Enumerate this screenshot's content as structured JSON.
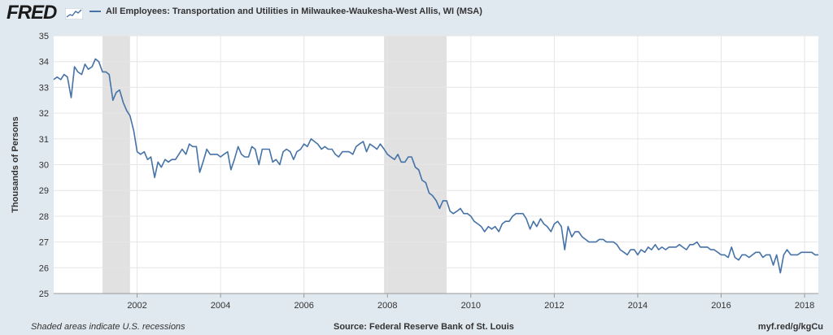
{
  "header": {
    "logo": "FRED",
    "legend": "All Employees: Transportation and Utilities in Milwaukee-Waukesha-West Allis, WI (MSA)"
  },
  "footer": {
    "left": "Shaded areas indicate U.S. recessions",
    "source": "Source: Federal Reserve Bank of St. Louis",
    "link": "myf.red/g/kgCu"
  },
  "colors": {
    "line": "#4572a7",
    "recession": "#e1e1e1",
    "frame": "#e1e9f0"
  },
  "chart_data": {
    "type": "line",
    "ylabel": "Thousands of Persons",
    "ylim": [
      25,
      35
    ],
    "xlim": [
      2000.0,
      2018.33
    ],
    "yticks": [
      "25",
      "26",
      "27",
      "28",
      "29",
      "30",
      "31",
      "32",
      "33",
      "34",
      "35"
    ],
    "xticks": [
      "2002",
      "2004",
      "2006",
      "2008",
      "2010",
      "2012",
      "2014",
      "2016",
      "2018"
    ],
    "recessions": [
      [
        2001.17,
        2001.83
      ],
      [
        2007.92,
        2009.42
      ]
    ],
    "series": [
      {
        "points": [
          [
            2000.0,
            33.3
          ],
          [
            2000.08,
            33.4
          ],
          [
            2000.17,
            33.3
          ],
          [
            2000.25,
            33.5
          ],
          [
            2000.33,
            33.4
          ],
          [
            2000.42,
            32.6
          ],
          [
            2000.5,
            33.8
          ],
          [
            2000.58,
            33.6
          ],
          [
            2000.67,
            33.5
          ],
          [
            2000.75,
            33.9
          ],
          [
            2000.83,
            33.7
          ],
          [
            2000.92,
            33.8
          ],
          [
            2001.0,
            34.1
          ],
          [
            2001.08,
            34.0
          ],
          [
            2001.17,
            33.6
          ],
          [
            2001.25,
            33.6
          ],
          [
            2001.33,
            33.5
          ],
          [
            2001.42,
            32.5
          ],
          [
            2001.5,
            32.8
          ],
          [
            2001.58,
            32.9
          ],
          [
            2001.67,
            32.4
          ],
          [
            2001.75,
            32.1
          ],
          [
            2001.83,
            31.9
          ],
          [
            2001.92,
            31.3
          ],
          [
            2002.0,
            30.5
          ],
          [
            2002.08,
            30.4
          ],
          [
            2002.17,
            30.5
          ],
          [
            2002.25,
            30.2
          ],
          [
            2002.33,
            30.3
          ],
          [
            2002.42,
            29.5
          ],
          [
            2002.5,
            30.1
          ],
          [
            2002.58,
            29.9
          ],
          [
            2002.67,
            30.2
          ],
          [
            2002.75,
            30.1
          ],
          [
            2002.83,
            30.2
          ],
          [
            2002.92,
            30.2
          ],
          [
            2003.0,
            30.4
          ],
          [
            2003.08,
            30.6
          ],
          [
            2003.17,
            30.4
          ],
          [
            2003.25,
            30.8
          ],
          [
            2003.33,
            30.7
          ],
          [
            2003.42,
            30.7
          ],
          [
            2003.5,
            29.7
          ],
          [
            2003.58,
            30.1
          ],
          [
            2003.67,
            30.6
          ],
          [
            2003.75,
            30.4
          ],
          [
            2003.83,
            30.4
          ],
          [
            2003.92,
            30.4
          ],
          [
            2004.0,
            30.3
          ],
          [
            2004.08,
            30.4
          ],
          [
            2004.17,
            30.5
          ],
          [
            2004.25,
            29.8
          ],
          [
            2004.33,
            30.2
          ],
          [
            2004.42,
            30.7
          ],
          [
            2004.5,
            30.4
          ],
          [
            2004.58,
            30.3
          ],
          [
            2004.67,
            30.3
          ],
          [
            2004.75,
            30.7
          ],
          [
            2004.83,
            30.6
          ],
          [
            2004.92,
            30.0
          ],
          [
            2005.0,
            30.6
          ],
          [
            2005.08,
            30.6
          ],
          [
            2005.17,
            30.6
          ],
          [
            2005.25,
            30.1
          ],
          [
            2005.33,
            30.2
          ],
          [
            2005.42,
            30.0
          ],
          [
            2005.5,
            30.5
          ],
          [
            2005.58,
            30.6
          ],
          [
            2005.67,
            30.5
          ],
          [
            2005.75,
            30.2
          ],
          [
            2005.83,
            30.5
          ],
          [
            2005.92,
            30.6
          ],
          [
            2006.0,
            30.8
          ],
          [
            2006.08,
            30.7
          ],
          [
            2006.17,
            31.0
          ],
          [
            2006.25,
            30.9
          ],
          [
            2006.33,
            30.8
          ],
          [
            2006.42,
            30.6
          ],
          [
            2006.5,
            30.7
          ],
          [
            2006.58,
            30.6
          ],
          [
            2006.67,
            30.6
          ],
          [
            2006.75,
            30.4
          ],
          [
            2006.83,
            30.3
          ],
          [
            2006.92,
            30.5
          ],
          [
            2007.0,
            30.5
          ],
          [
            2007.08,
            30.5
          ],
          [
            2007.17,
            30.4
          ],
          [
            2007.25,
            30.7
          ],
          [
            2007.33,
            30.8
          ],
          [
            2007.42,
            30.9
          ],
          [
            2007.5,
            30.5
          ],
          [
            2007.58,
            30.8
          ],
          [
            2007.67,
            30.7
          ],
          [
            2007.75,
            30.6
          ],
          [
            2007.83,
            30.8
          ],
          [
            2007.92,
            30.6
          ],
          [
            2008.0,
            30.4
          ],
          [
            2008.08,
            30.3
          ],
          [
            2008.17,
            30.2
          ],
          [
            2008.25,
            30.4
          ],
          [
            2008.33,
            30.1
          ],
          [
            2008.42,
            30.1
          ],
          [
            2008.5,
            30.3
          ],
          [
            2008.58,
            30.3
          ],
          [
            2008.67,
            29.9
          ],
          [
            2008.75,
            29.8
          ],
          [
            2008.83,
            29.4
          ],
          [
            2008.92,
            29.3
          ],
          [
            2009.0,
            28.9
          ],
          [
            2009.08,
            28.8
          ],
          [
            2009.17,
            28.6
          ],
          [
            2009.25,
            28.3
          ],
          [
            2009.33,
            28.6
          ],
          [
            2009.42,
            28.6
          ],
          [
            2009.5,
            28.2
          ],
          [
            2009.58,
            28.1
          ],
          [
            2009.67,
            28.2
          ],
          [
            2009.75,
            28.3
          ],
          [
            2009.83,
            28.1
          ],
          [
            2009.92,
            28.1
          ],
          [
            2010.0,
            28.0
          ],
          [
            2010.08,
            27.8
          ],
          [
            2010.17,
            27.7
          ],
          [
            2010.25,
            27.6
          ],
          [
            2010.33,
            27.4
          ],
          [
            2010.42,
            27.6
          ],
          [
            2010.5,
            27.5
          ],
          [
            2010.58,
            27.6
          ],
          [
            2010.67,
            27.4
          ],
          [
            2010.75,
            27.7
          ],
          [
            2010.83,
            27.8
          ],
          [
            2010.92,
            27.8
          ],
          [
            2011.0,
            28.0
          ],
          [
            2011.08,
            28.1
          ],
          [
            2011.17,
            28.1
          ],
          [
            2011.25,
            28.1
          ],
          [
            2011.33,
            27.9
          ],
          [
            2011.42,
            27.5
          ],
          [
            2011.5,
            27.8
          ],
          [
            2011.58,
            27.6
          ],
          [
            2011.67,
            27.9
          ],
          [
            2011.75,
            27.7
          ],
          [
            2011.83,
            27.6
          ],
          [
            2011.92,
            27.4
          ],
          [
            2012.0,
            27.7
          ],
          [
            2012.08,
            27.8
          ],
          [
            2012.17,
            27.6
          ],
          [
            2012.25,
            26.7
          ],
          [
            2012.33,
            27.6
          ],
          [
            2012.42,
            27.2
          ],
          [
            2012.5,
            27.4
          ],
          [
            2012.58,
            27.4
          ],
          [
            2012.67,
            27.2
          ],
          [
            2012.75,
            27.1
          ],
          [
            2012.83,
            27.0
          ],
          [
            2012.92,
            27.0
          ],
          [
            2013.0,
            27.0
          ],
          [
            2013.08,
            27.1
          ],
          [
            2013.17,
            27.1
          ],
          [
            2013.25,
            27.0
          ],
          [
            2013.33,
            27.0
          ],
          [
            2013.42,
            27.0
          ],
          [
            2013.5,
            26.9
          ],
          [
            2013.58,
            26.7
          ],
          [
            2013.67,
            26.6
          ],
          [
            2013.75,
            26.5
          ],
          [
            2013.83,
            26.7
          ],
          [
            2013.92,
            26.7
          ],
          [
            2014.0,
            26.5
          ],
          [
            2014.08,
            26.7
          ],
          [
            2014.17,
            26.6
          ],
          [
            2014.25,
            26.8
          ],
          [
            2014.33,
            26.7
          ],
          [
            2014.42,
            26.9
          ],
          [
            2014.5,
            26.7
          ],
          [
            2014.58,
            26.8
          ],
          [
            2014.67,
            26.7
          ],
          [
            2014.75,
            26.8
          ],
          [
            2014.83,
            26.8
          ],
          [
            2014.92,
            26.8
          ],
          [
            2015.0,
            26.9
          ],
          [
            2015.08,
            26.8
          ],
          [
            2015.17,
            26.7
          ],
          [
            2015.25,
            26.9
          ],
          [
            2015.33,
            26.9
          ],
          [
            2015.42,
            27.0
          ],
          [
            2015.5,
            26.8
          ],
          [
            2015.58,
            26.8
          ],
          [
            2015.67,
            26.8
          ],
          [
            2015.75,
            26.7
          ],
          [
            2015.83,
            26.7
          ],
          [
            2015.92,
            26.6
          ],
          [
            2016.0,
            26.5
          ],
          [
            2016.08,
            26.5
          ],
          [
            2016.17,
            26.4
          ],
          [
            2016.25,
            26.8
          ],
          [
            2016.33,
            26.4
          ],
          [
            2016.42,
            26.3
          ],
          [
            2016.5,
            26.5
          ],
          [
            2016.58,
            26.5
          ],
          [
            2016.67,
            26.4
          ],
          [
            2016.75,
            26.5
          ],
          [
            2016.83,
            26.6
          ],
          [
            2016.92,
            26.6
          ],
          [
            2017.0,
            26.4
          ],
          [
            2017.08,
            26.5
          ],
          [
            2017.17,
            26.5
          ],
          [
            2017.25,
            26.1
          ],
          [
            2017.33,
            26.5
          ],
          [
            2017.42,
            25.8
          ],
          [
            2017.5,
            26.5
          ],
          [
            2017.58,
            26.7
          ],
          [
            2017.67,
            26.5
          ],
          [
            2017.75,
            26.5
          ],
          [
            2017.83,
            26.5
          ],
          [
            2017.92,
            26.6
          ],
          [
            2018.0,
            26.6
          ],
          [
            2018.08,
            26.6
          ],
          [
            2018.17,
            26.6
          ],
          [
            2018.25,
            26.5
          ],
          [
            2018.33,
            26.5
          ]
        ]
      }
    ]
  }
}
